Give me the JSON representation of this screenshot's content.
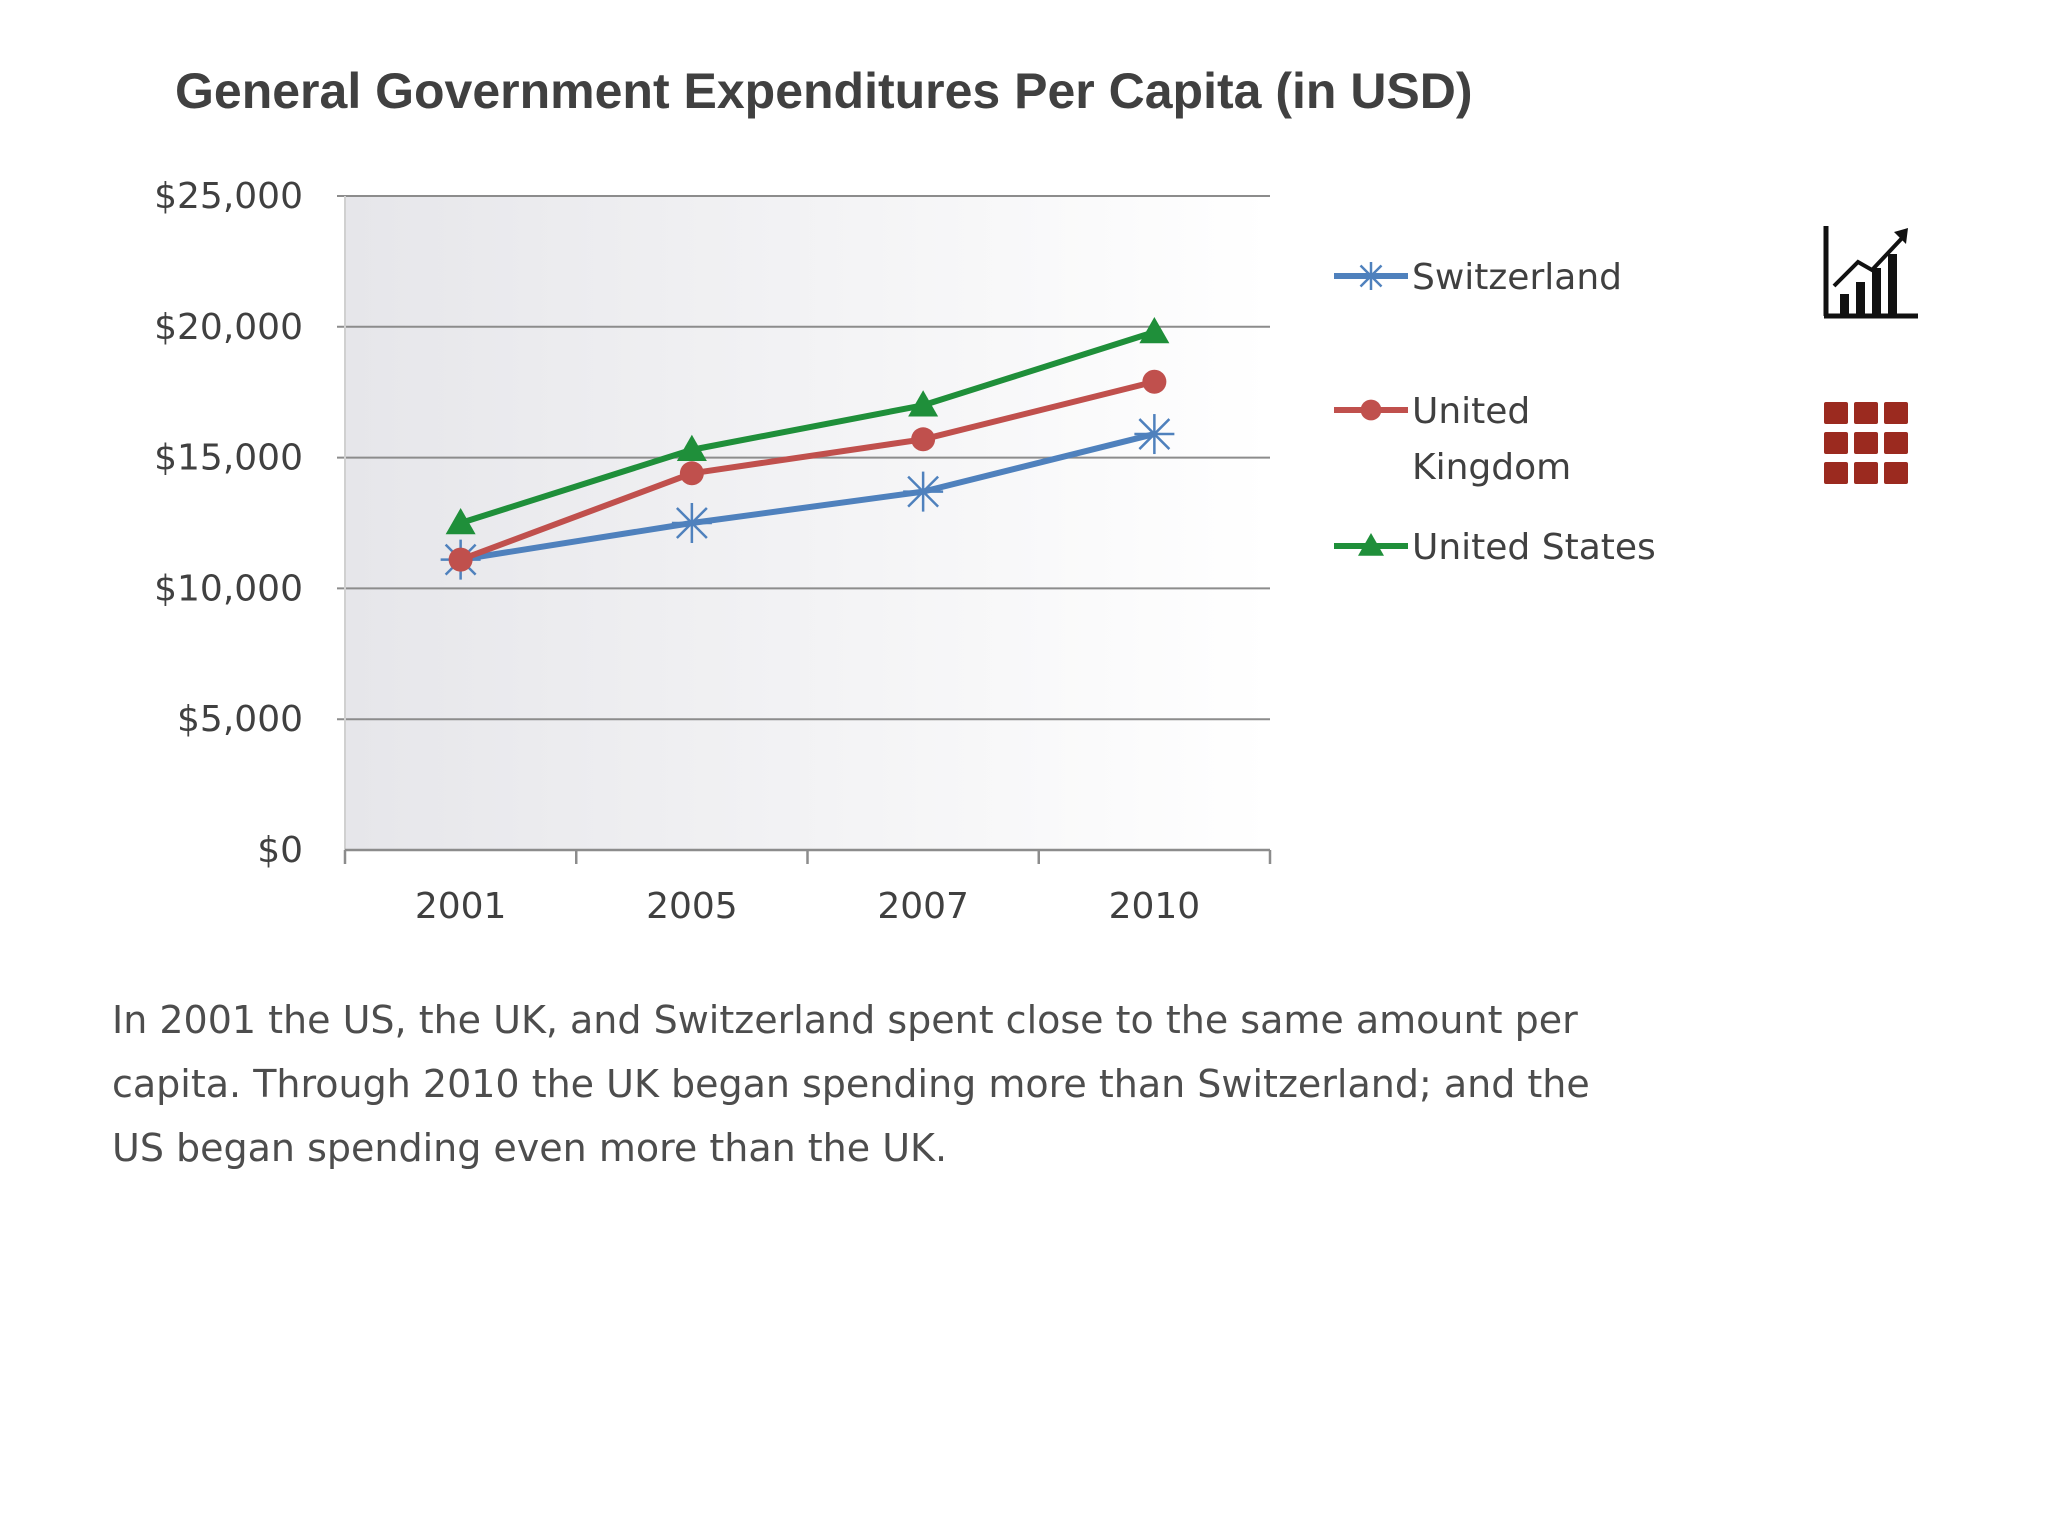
{
  "chart_data": {
    "type": "line",
    "title": "General Government Expenditures Per Capita (in USD)",
    "xlabel": "",
    "ylabel": "",
    "categories": [
      "2001",
      "2005",
      "2007",
      "2010"
    ],
    "ylim": [
      0,
      25000
    ],
    "yticks": [
      0,
      5000,
      10000,
      15000,
      20000,
      25000
    ],
    "ytick_labels": [
      "$0",
      "$5,000",
      "$10,000",
      "$15,000",
      "$20,000",
      "$25,000"
    ],
    "grid": true,
    "legend_position": "right",
    "series": [
      {
        "name": "Switzerland",
        "values": [
          11100,
          12500,
          13700,
          15900
        ],
        "color": "#4f81bd",
        "marker": "asterisk"
      },
      {
        "name": "United Kingdom",
        "values": [
          11100,
          14400,
          15700,
          17900
        ],
        "color": "#c0504d",
        "marker": "circle"
      },
      {
        "name": "United States",
        "values": [
          12500,
          15300,
          17000,
          19800
        ],
        "color": "#1f8f3a",
        "marker": "triangle"
      }
    ]
  },
  "caption": "In 2001 the US, the UK, and Switzerland spent close to the same amount per capita. Through 2010 the UK began spending more than Switzerland; and the US began spending even more than the UK.",
  "icons": {
    "chart_icon": "bar-chart-trend-icon",
    "grid_icon": "grid-icon",
    "grid_color": "#9b2a1f"
  }
}
